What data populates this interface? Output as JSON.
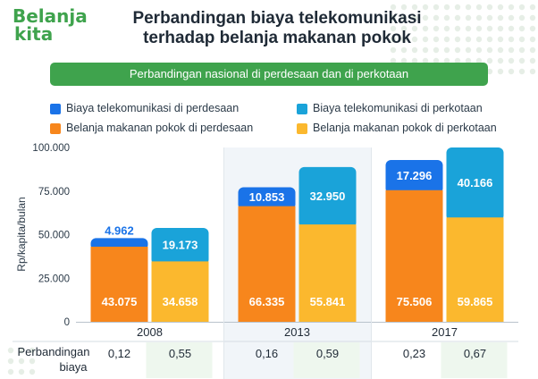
{
  "logo": {
    "line1": "Belanja",
    "line2": "kita"
  },
  "title": {
    "line1": "Perbandingan biaya telekomunikasi",
    "line2": "terhadap belanja makanan pokok"
  },
  "subtitle": "Perbandingan nasional di perdesaan dan di perkotaan",
  "legend": [
    {
      "label": "Biaya telekomunikasi di perdesaan",
      "color": "#1a73e8"
    },
    {
      "label": "Biaya telekomunikasi di perkotaan",
      "color": "#1aa3d9"
    },
    {
      "label": "Belanja makanan pokok di perdesaan",
      "color": "#f7861c"
    },
    {
      "label": "Belanja makanan pokok di perkotaan",
      "color": "#fbb82e"
    }
  ],
  "ratio_row": {
    "label_line1": "Perbandingan",
    "label_line2": "biaya"
  },
  "chart_data": {
    "type": "bar",
    "stacked": true,
    "categories": [
      "2008",
      "2013",
      "2017"
    ],
    "ylabel": "Rp/kapita/bulan",
    "ylim": [
      0,
      100000
    ],
    "yticks": [
      "0",
      "25.000",
      "50.000",
      "75.000",
      "100.000"
    ],
    "groups": [
      {
        "rural": {
          "food": 43075,
          "telecom": 4962,
          "food_label": "43.075",
          "telecom_label": "4.962"
        },
        "urban": {
          "food": 34658,
          "telecom": 19173,
          "food_label": "34.658",
          "telecom_label": "19.173"
        },
        "ratio_rural": "0,12",
        "ratio_urban": "0,55"
      },
      {
        "rural": {
          "food": 66335,
          "telecom": 10853,
          "food_label": "66.335",
          "telecom_label": "10.853"
        },
        "urban": {
          "food": 55841,
          "telecom": 32950,
          "food_label": "55.841",
          "telecom_label": "32.950"
        },
        "ratio_rural": "0,16",
        "ratio_urban": "0,59"
      },
      {
        "rural": {
          "food": 75506,
          "telecom": 17296,
          "food_label": "75.506",
          "telecom_label": "17.296"
        },
        "urban": {
          "food": 59865,
          "telecom": 40166,
          "food_label": "59.865",
          "telecom_label": "40.166"
        },
        "ratio_rural": "0,23",
        "ratio_urban": "0,67"
      }
    ],
    "colors": {
      "rural_telecom": "#1a73e8",
      "urban_telecom": "#1aa3d9",
      "rural_food": "#f7861c",
      "urban_food": "#fbb82e",
      "brand_green": "#3fa34d"
    }
  }
}
